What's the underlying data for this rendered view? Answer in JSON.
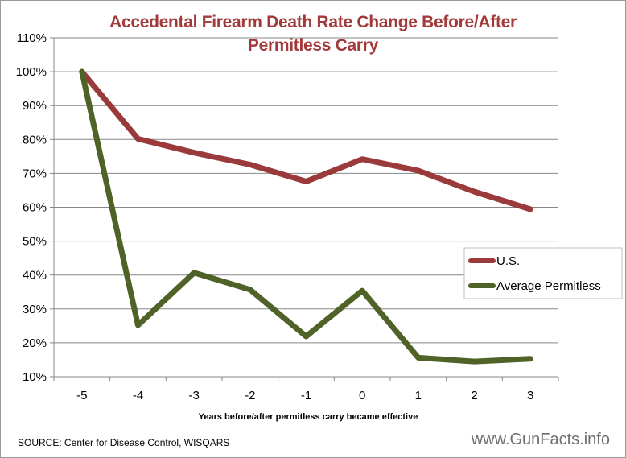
{
  "chart_data": {
    "type": "line",
    "title": "Accedental Firearm Death Rate Change Before/After Permitless Carry",
    "title_lines": [
      "Accedental Firearm Death Rate Change Before/After",
      "Permitless Carry"
    ],
    "xlabel": "Years before/after permitless carry became effective",
    "ylabel": "",
    "categories": [
      "-5",
      "-4",
      "-3",
      "-2",
      "-1",
      "0",
      "1",
      "2",
      "3"
    ],
    "ylim": [
      10,
      110
    ],
    "yticks": [
      10,
      20,
      30,
      40,
      50,
      60,
      70,
      80,
      90,
      100,
      110
    ],
    "ytick_labels": [
      "10%",
      "20%",
      "30%",
      "40%",
      "50%",
      "60%",
      "70%",
      "80%",
      "90%",
      "100%",
      "110%"
    ],
    "grid": true,
    "legend_position": "right",
    "series": [
      {
        "name": "U.S.",
        "color": "#9b3a3a",
        "values": [
          100,
          80.2,
          76.1,
          72.6,
          67.6,
          74.2,
          70.8,
          64.6,
          59.4
        ]
      },
      {
        "name": "Average Permitless",
        "color": "#4f6228",
        "values": [
          100,
          25.2,
          40.7,
          35.7,
          21.9,
          35.4,
          15.6,
          14.5,
          15.3
        ]
      }
    ]
  },
  "footer": {
    "source": "SOURCE: Center for Disease Control, WISQARS",
    "watermark": "www.GunFacts.info"
  }
}
